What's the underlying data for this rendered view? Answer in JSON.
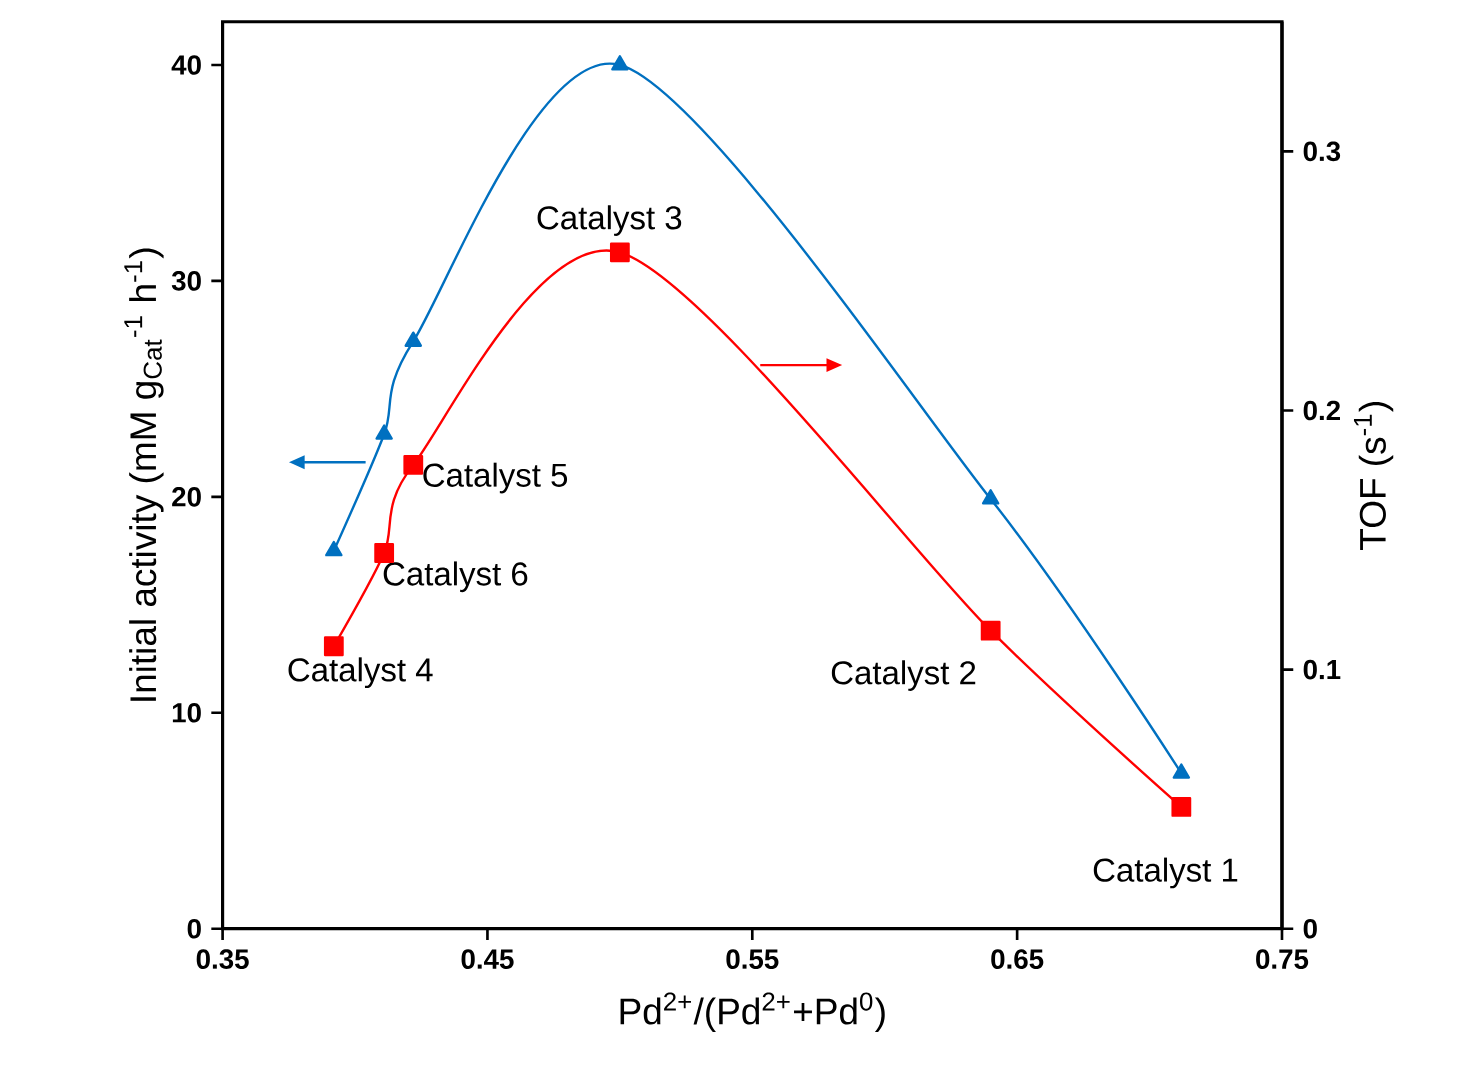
{
  "chart_data": {
    "type": "line",
    "xlabel": "Pd$^{2+}$/(Pd$^{2+}$+Pd$^{0}$)",
    "ylabel": "Initial activity (mM g$_{Cat}$$^{-1}$ h$^{-1}$)",
    "y2label": "TOF (s$^{-1}$)",
    "xlim": [
      0.35,
      0.75
    ],
    "xticks": [
      0.35,
      0.45,
      0.55,
      0.65,
      0.75
    ],
    "ylim": [
      0,
      42
    ],
    "yticks": [
      0,
      10,
      20,
      30,
      40
    ],
    "y2lim": [
      0,
      0.35
    ],
    "y2ticks": [
      0,
      0.1,
      0.2,
      0.3
    ],
    "grid": false,
    "series": [
      {
        "color": "#0070c0",
        "marker": "triangle",
        "x": [
          0.392,
          0.411,
          0.422,
          0.5,
          0.64,
          0.712
        ],
        "values": [
          17.5,
          22.9,
          27.2,
          40,
          19.9,
          7.2
        ]
      },
      {
        "color": "#ff0000",
        "marker": "square",
        "axis": "y2",
        "x": [
          0.392,
          0.411,
          0.422,
          0.5,
          0.64,
          0.712
        ],
        "values": [
          0.109,
          0.145,
          0.179,
          0.261,
          0.115,
          0.047
        ]
      }
    ],
    "annotations": [
      "Catalyst 4",
      "Catalyst 6",
      "Catalyst 5",
      "Catalyst 3",
      "Catalyst 2",
      "Catalyst 1"
    ]
  }
}
